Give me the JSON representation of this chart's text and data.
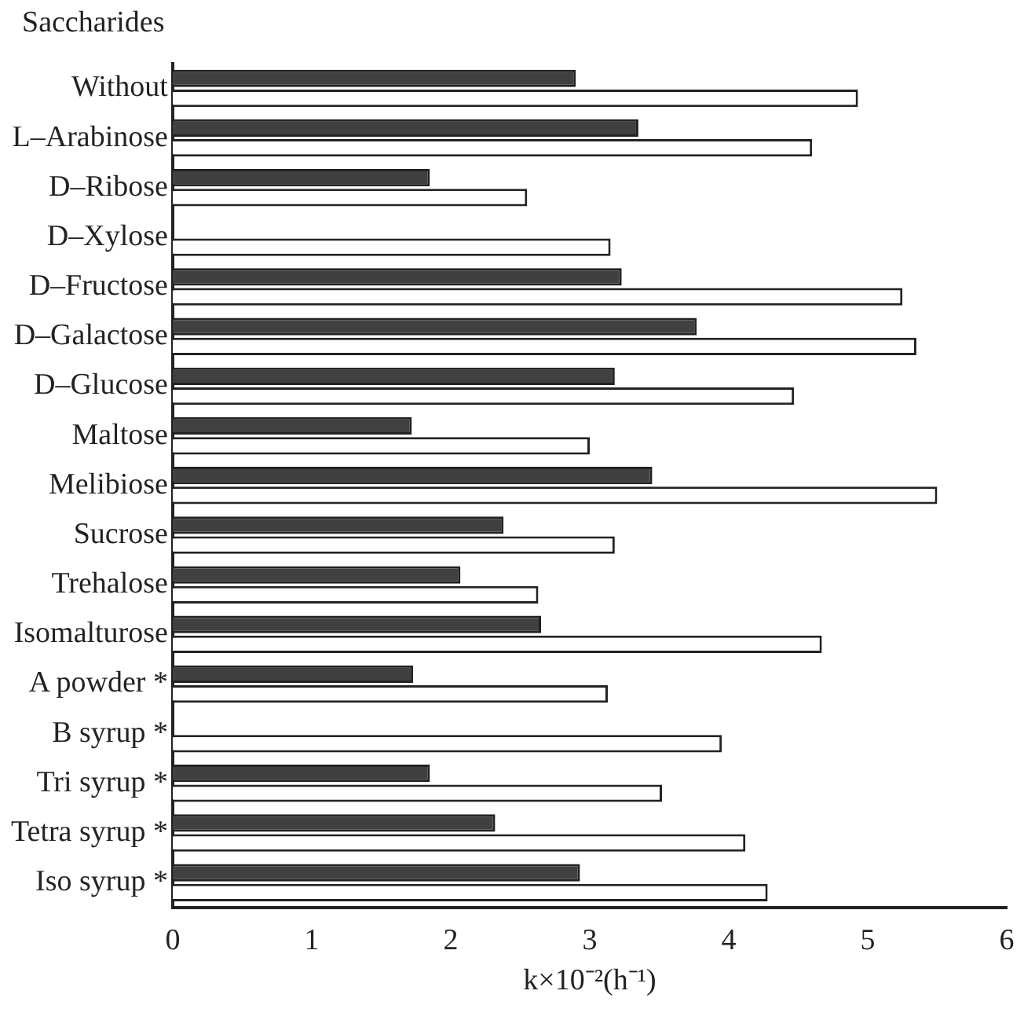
{
  "chart_data": {
    "type": "bar",
    "orientation": "horizontal",
    "ylabel": "Saccharides",
    "xlabel": "k×10⁻²(h⁻¹)",
    "categories": [
      "Without",
      "L–Arabinose",
      "D–Ribose",
      "D–Xylose",
      "D–Fructose",
      "D–Galactose",
      "D–Glucose",
      "Maltose",
      "Melibiose",
      "Sucrose",
      "Trehalose",
      "Isomalturose",
      "A powder *",
      "B syrup *",
      "Tri syrup *",
      "Tetra syrup *",
      "Iso syrup *"
    ],
    "series": [
      {
        "color": "#404040",
        "values": [
          2.9,
          3.35,
          1.85,
          null,
          3.23,
          3.77,
          3.18,
          1.72,
          3.45,
          2.38,
          2.07,
          2.65,
          1.73,
          null,
          1.85,
          2.32,
          2.93
        ]
      },
      {
        "color": "#ffffff",
        "values": [
          4.93,
          4.6,
          2.55,
          3.15,
          5.25,
          5.35,
          4.47,
          3.0,
          5.5,
          3.18,
          2.63,
          4.67,
          3.13,
          3.95,
          3.52,
          4.12,
          4.28
        ]
      }
    ],
    "xlim": [
      0,
      6
    ],
    "xticks": [
      0,
      1,
      2,
      3,
      4,
      5,
      6
    ],
    "grid": false,
    "legend": false
  }
}
